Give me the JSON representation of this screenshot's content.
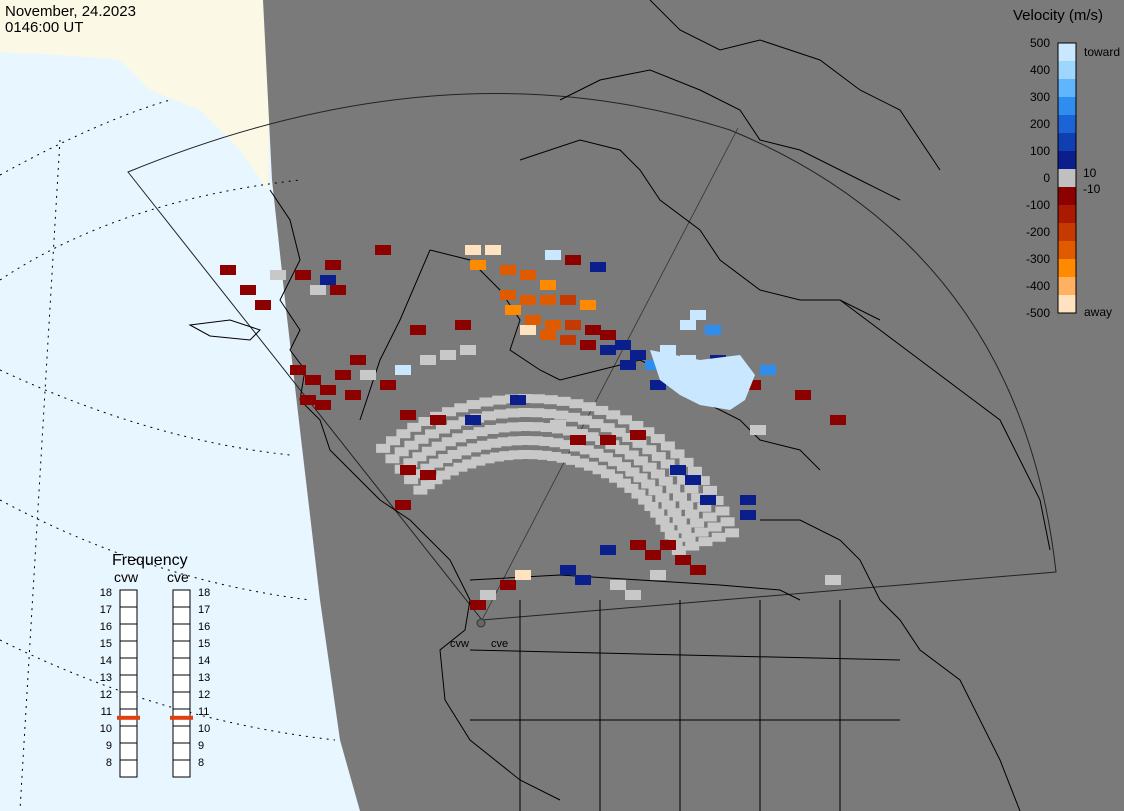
{
  "header": {
    "date": "November, 24.2023",
    "time": "0146:00 UT"
  },
  "velocity_legend": {
    "title": "Velocity (m/s)",
    "ticks": [
      "500",
      "400",
      "300",
      "200",
      "100",
      "0",
      "-100",
      "-200",
      "-300",
      "-400",
      "-500"
    ],
    "inner_ticks": [
      "10",
      "-10"
    ],
    "toward_label": "toward",
    "away_label": "away",
    "colors": [
      "#c9e8ff",
      "#9fd6ff",
      "#5fb6ff",
      "#2f8df0",
      "#1b63d6",
      "#0f3fb0",
      "#0b1f8c",
      "#c0c0c0",
      "#8c0000",
      "#aa1a00",
      "#c43a00",
      "#e05a00",
      "#ff8a00",
      "#ffb060",
      "#ffe2c0"
    ]
  },
  "frequency": {
    "title": "Frequency",
    "radars": [
      {
        "label": "cvw",
        "freq": 11
      },
      {
        "label": "cve",
        "freq": 11
      }
    ],
    "scale": [
      "18",
      "17",
      "16",
      "15",
      "14",
      "13",
      "12",
      "11",
      "10",
      "9",
      "8"
    ]
  },
  "radar_labels": [
    "cvw",
    "cve"
  ],
  "colors": {
    "night": "#7a7a7a",
    "day_sea": "#e8f6ff",
    "day_land": "#fbf9e6",
    "ground_scatter": "#c8c8c8",
    "line": "#000000",
    "indicator": "#e04010"
  }
}
